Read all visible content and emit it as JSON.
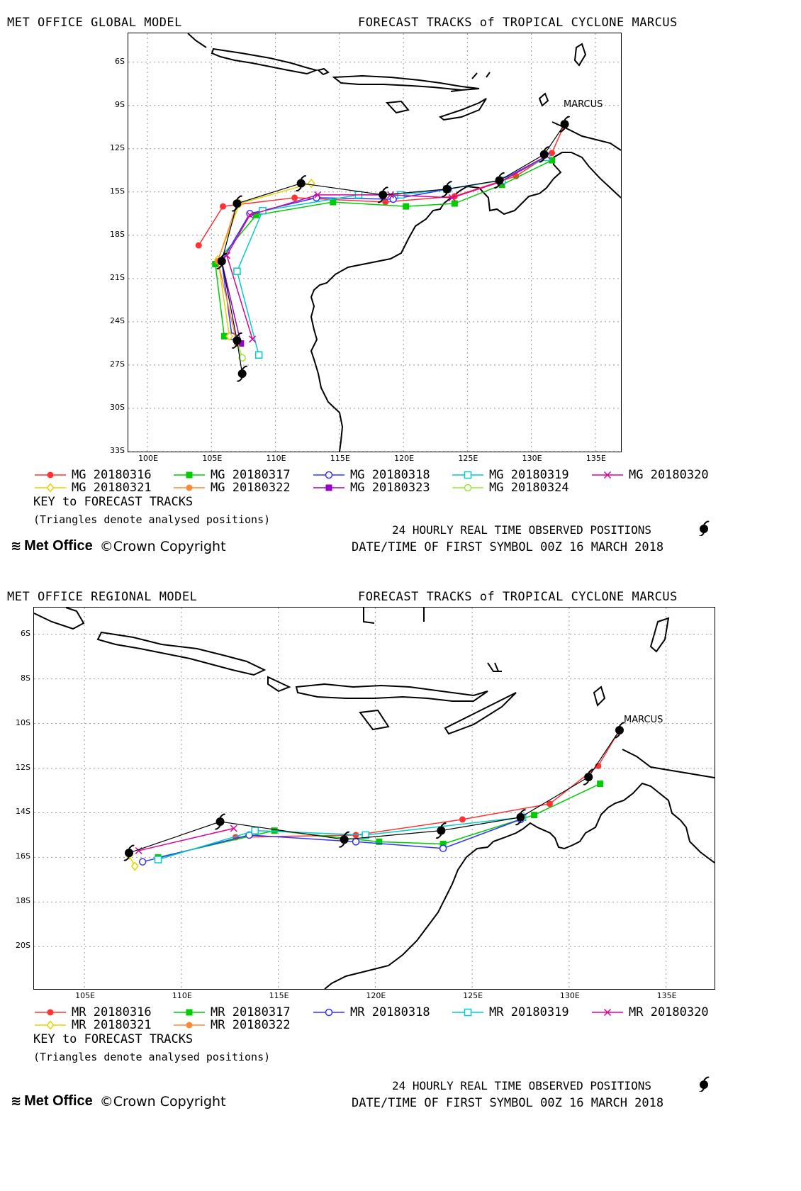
{
  "panels": [
    {
      "id": "global",
      "model_title": "MET OFFICE GLOBAL MODEL",
      "forecast_title": "FORECAST TRACKS of TROPICAL CYCLONE MARCUS",
      "storm_label": "MARCUS",
      "lon_range": [
        98.5,
        137
      ],
      "lat_range": [
        -33,
        -4
      ],
      "x_ticks": [
        "100E",
        "105E",
        "110E",
        "115E",
        "120E",
        "125E",
        "130E",
        "135E"
      ],
      "x_tick_values": [
        100,
        105,
        110,
        115,
        120,
        125,
        130,
        135
      ],
      "y_ticks": [
        "6S",
        "9S",
        "12S",
        "15S",
        "18S",
        "21S",
        "24S",
        "27S",
        "30S",
        "33S"
      ],
      "y_tick_values": [
        -6,
        -9,
        -12,
        -15,
        -18,
        -21,
        -24,
        -27,
        -30,
        -33
      ],
      "legend": [
        {
          "label": "MG 20180316",
          "color": "#ff3333",
          "marker": "circle-filled"
        },
        {
          "label": "MG 20180317",
          "color": "#00cc00",
          "marker": "square-filled"
        },
        {
          "label": "MG 20180318",
          "color": "#3333ff",
          "marker": "circle-open"
        },
        {
          "label": "MG 20180319",
          "color": "#00cccc",
          "marker": "square-open"
        },
        {
          "label": "MG 20180320",
          "color": "#dd0099",
          "marker": "cross"
        },
        {
          "label": "MG 20180321",
          "color": "#e6d200",
          "marker": "diamond-open"
        },
        {
          "label": "MG 20180322",
          "color": "#ff8833",
          "marker": "circle-filled"
        },
        {
          "label": "MG 20180323",
          "color": "#9900cc",
          "marker": "square-filled"
        },
        {
          "label": "MG 20180324",
          "color": "#99e633",
          "marker": "circle-open"
        }
      ],
      "key_title": "KEY to FORECAST TRACKS",
      "key_note": "(Triangles denote analysed positions)",
      "observed_label": "24 HOURLY REAL TIME OBSERVED POSITIONS",
      "first_symbol": "DATE/TIME OF FIRST SYMBOL 00Z 16 MARCH 2018",
      "observed_track": [
        [
          132.6,
          -10.3
        ],
        [
          131.0,
          -12.4
        ],
        [
          127.5,
          -14.2
        ],
        [
          123.4,
          -14.8
        ],
        [
          118.4,
          -15.2
        ],
        [
          112.0,
          -14.4
        ],
        [
          107.0,
          -15.8
        ],
        [
          105.8,
          -19.8
        ],
        [
          107.0,
          -25.3
        ],
        [
          107.4,
          -27.6
        ]
      ],
      "tracks": [
        {
          "color": "#ff3333",
          "marker": "circle-filled",
          "points": [
            [
              132.6,
              -10.3
            ],
            [
              131.6,
              -12.3
            ],
            [
              128.8,
              -13.9
            ],
            [
              124.0,
              -15.3
            ],
            [
              118.6,
              -15.7
            ],
            [
              111.5,
              -15.4
            ],
            [
              105.9,
              -16.0
            ],
            [
              104.0,
              -18.7
            ]
          ]
        },
        {
          "color": "#00cc00",
          "marker": "square-filled",
          "points": [
            [
              131.6,
              -12.8
            ],
            [
              127.7,
              -14.5
            ],
            [
              124.0,
              -15.8
            ],
            [
              120.2,
              -16.0
            ],
            [
              114.5,
              -15.7
            ],
            [
              108.5,
              -16.6
            ],
            [
              105.3,
              -20.0
            ],
            [
              106.0,
              -25.0
            ]
          ]
        },
        {
          "color": "#3333ff",
          "marker": "circle-open",
          "points": [
            [
              131.2,
              -12.5
            ],
            [
              127.6,
              -14.2
            ],
            [
              123.5,
              -14.8
            ],
            [
              119.2,
              -15.5
            ],
            [
              113.2,
              -15.4
            ],
            [
              108.0,
              -16.5
            ],
            [
              105.8,
              -19.8
            ],
            [
              106.6,
              -25.0
            ]
          ]
        },
        {
          "color": "#00cccc",
          "marker": "square-open",
          "points": [
            [
              131.2,
              -12.6
            ],
            [
              127.7,
              -14.2
            ],
            [
              123.4,
              -14.8
            ],
            [
              119.8,
              -15.2
            ],
            [
              116.5,
              -15.2
            ],
            [
              109.0,
              -16.3
            ],
            [
              107.0,
              -20.5
            ],
            [
              108.7,
              -26.3
            ]
          ]
        },
        {
          "color": "#dd0099",
          "marker": "cross",
          "points": [
            [
              131.2,
              -12.5
            ],
            [
              127.6,
              -14.3
            ],
            [
              123.8,
              -15.4
            ],
            [
              119.0,
              -15.2
            ],
            [
              113.3,
              -15.2
            ],
            [
              108.0,
              -16.6
            ],
            [
              106.2,
              -19.4
            ],
            [
              108.2,
              -25.2
            ]
          ]
        },
        {
          "color": "#e6d200",
          "marker": "diamond-open",
          "points": [
            [
              112.8,
              -14.4
            ],
            [
              107.2,
              -15.8
            ],
            [
              105.5,
              -19.7
            ],
            [
              106.4,
              -25.0
            ]
          ]
        },
        {
          "color": "#ff8833",
          "marker": "circle-filled",
          "points": [
            [
              107.0,
              -15.8
            ],
            [
              105.5,
              -19.8
            ],
            [
              107.0,
              -25.5
            ]
          ]
        },
        {
          "color": "#9900cc",
          "marker": "square-filled",
          "points": [
            [
              105.8,
              -19.8
            ],
            [
              107.3,
              -25.5
            ]
          ]
        },
        {
          "color": "#99e633",
          "marker": "circle-open",
          "points": [
            [
              107.0,
              -25.3
            ],
            [
              107.4,
              -26.5
            ]
          ]
        }
      ]
    },
    {
      "id": "regional",
      "model_title": "MET OFFICE REGIONAL MODEL",
      "forecast_title": "FORECAST TRACKS of TROPICAL CYCLONE MARCUS",
      "storm_label": "MARCUS",
      "lon_range": [
        102.4,
        137.5
      ],
      "lat_range": [
        -21.9,
        -4.8
      ],
      "x_ticks": [
        "105E",
        "110E",
        "115E",
        "120E",
        "125E",
        "130E",
        "135E"
      ],
      "x_tick_values": [
        105,
        110,
        115,
        120,
        125,
        130,
        135
      ],
      "y_ticks": [
        "6S",
        "8S",
        "10S",
        "12S",
        "14S",
        "16S",
        "18S",
        "20S"
      ],
      "y_tick_values": [
        -6,
        -8,
        -10,
        -12,
        -14,
        -16,
        -18,
        -20
      ],
      "legend": [
        {
          "label": "MR 20180316",
          "color": "#ff3333",
          "marker": "circle-filled"
        },
        {
          "label": "MR 20180317",
          "color": "#00cc00",
          "marker": "square-filled"
        },
        {
          "label": "MR 20180318",
          "color": "#3333ff",
          "marker": "circle-open"
        },
        {
          "label": "MR 20180319",
          "color": "#00cccc",
          "marker": "square-open"
        },
        {
          "label": "MR 20180320",
          "color": "#dd0099",
          "marker": "cross"
        },
        {
          "label": "MR 20180321",
          "color": "#e6d200",
          "marker": "diamond-open"
        },
        {
          "label": "MR 20180322",
          "color": "#ff8833",
          "marker": "circle-filled"
        }
      ],
      "key_title": "KEY to FORECAST TRACKS",
      "key_note": "(Triangles denote analysed positions)",
      "observed_label": "24 HOURLY REAL TIME OBSERVED POSITIONS",
      "first_symbol": "DATE/TIME OF FIRST SYMBOL 00Z 16 MARCH 2018",
      "observed_track": [
        [
          132.6,
          -10.3
        ],
        [
          131.0,
          -12.4
        ],
        [
          127.5,
          -14.2
        ],
        [
          123.4,
          -14.8
        ],
        [
          118.4,
          -15.2
        ],
        [
          112.0,
          -14.4
        ],
        [
          107.3,
          -15.8
        ]
      ],
      "tracks": [
        {
          "color": "#ff3333",
          "marker": "circle-filled",
          "points": [
            [
              132.6,
              -10.3
            ],
            [
              131.5,
              -11.9
            ],
            [
              129.0,
              -13.6
            ],
            [
              124.5,
              -14.3
            ],
            [
              119.0,
              -15.0
            ],
            [
              112.8,
              -15.1
            ]
          ]
        },
        {
          "color": "#00cc00",
          "marker": "square-filled",
          "points": [
            [
              131.6,
              -12.7
            ],
            [
              128.2,
              -14.1
            ],
            [
              123.5,
              -15.4
            ],
            [
              120.2,
              -15.3
            ],
            [
              114.8,
              -14.8
            ],
            [
              108.8,
              -16.0
            ]
          ]
        },
        {
          "color": "#3333ff",
          "marker": "circle-open",
          "points": [
            [
              127.5,
              -14.3
            ],
            [
              123.5,
              -15.6
            ],
            [
              119.0,
              -15.3
            ],
            [
              113.5,
              -15.0
            ],
            [
              108.0,
              -16.2
            ]
          ]
        },
        {
          "color": "#00cccc",
          "marker": "square-open",
          "points": [
            [
              127.6,
              -14.2
            ],
            [
              119.5,
              -15.0
            ],
            [
              113.8,
              -14.8
            ],
            [
              108.8,
              -16.1
            ]
          ]
        },
        {
          "color": "#dd0099",
          "marker": "cross",
          "points": [
            [
              112.7,
              -14.7
            ],
            [
              107.8,
              -15.7
            ]
          ]
        },
        {
          "color": "#e6d200",
          "marker": "diamond-open",
          "points": [
            [
              107.3,
              -15.9
            ],
            [
              107.6,
              -16.4
            ]
          ]
        },
        {
          "color": "#ff8833",
          "marker": "circle-filled",
          "points": [
            [
              107.3,
              -15.8
            ]
          ]
        }
      ]
    }
  ],
  "branding": {
    "logo_text": "Met Office",
    "copyright": "©Crown Copyright"
  }
}
